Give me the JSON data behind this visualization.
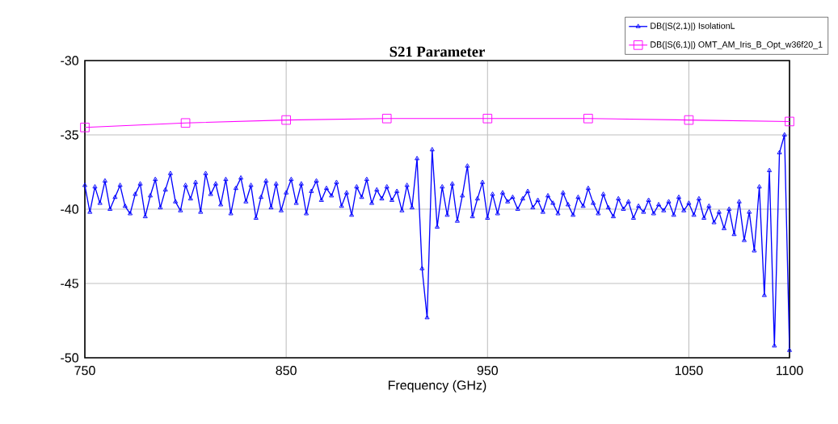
{
  "chart_data": {
    "type": "line",
    "title": "S21 Parameter",
    "xlabel": "Frequency (GHz)",
    "xlim": [
      750,
      1100
    ],
    "xticks": [
      750,
      850,
      950,
      1050,
      1100
    ],
    "ylim": [
      -50,
      -30
    ],
    "yticks": [
      -50,
      -45,
      -40,
      -35,
      -30
    ],
    "grid": true,
    "legend": "top right",
    "line_style": "solid",
    "series": [
      {
        "name": "DB(|S(2,1)|) IsolationL",
        "color": "#0000ff",
        "marker": "triangle",
        "x": [
          750,
          752.5,
          755,
          757.5,
          760,
          762.5,
          765,
          767.5,
          770,
          772.5,
          775,
          777.5,
          780,
          782.5,
          785,
          787.5,
          790,
          792.5,
          795,
          797.5,
          800,
          802.5,
          805,
          807.5,
          810,
          812.5,
          815,
          817.5,
          820,
          822.5,
          825,
          827.5,
          830,
          832.5,
          835,
          837.5,
          840,
          842.5,
          845,
          847.5,
          850,
          852.5,
          855,
          857.5,
          860,
          862.5,
          865,
          867.5,
          870,
          872.5,
          875,
          877.5,
          880,
          882.5,
          885,
          887.5,
          890,
          892.5,
          895,
          897.5,
          900,
          902.5,
          905,
          907.5,
          910,
          912.5,
          915,
          917.5,
          920,
          922.5,
          925,
          927.5,
          930,
          932.5,
          935,
          937.5,
          940,
          942.5,
          945,
          947.5,
          950,
          952.5,
          955,
          957.5,
          960,
          962.5,
          965,
          967.5,
          970,
          972.5,
          975,
          977.5,
          980,
          982.5,
          985,
          987.5,
          990,
          992.5,
          995,
          997.5,
          1000,
          1002.5,
          1005,
          1007.5,
          1010,
          1012.5,
          1015,
          1017.5,
          1020,
          1022.5,
          1025,
          1027.5,
          1030,
          1032.5,
          1035,
          1037.5,
          1040,
          1042.5,
          1045,
          1047.5,
          1050,
          1052.5,
          1055,
          1057.5,
          1060,
          1062.5,
          1065,
          1067.5,
          1070,
          1072.5,
          1075,
          1077.5,
          1080,
          1082.5,
          1085,
          1087.5,
          1090,
          1092.5,
          1095,
          1097.5,
          1100
        ],
        "values": [
          -38.4,
          -40.2,
          -38.5,
          -39.6,
          -38.1,
          -40.0,
          -39.2,
          -38.4,
          -39.8,
          -40.3,
          -39.0,
          -38.3,
          -40.5,
          -39.1,
          -38.0,
          -39.9,
          -38.7,
          -37.6,
          -39.5,
          -40.1,
          -38.4,
          -39.3,
          -38.2,
          -40.2,
          -37.6,
          -39.0,
          -38.3,
          -39.7,
          -38.0,
          -40.3,
          -38.6,
          -37.9,
          -39.5,
          -38.4,
          -40.6,
          -39.2,
          -38.1,
          -39.9,
          -38.3,
          -40.1,
          -38.9,
          -38.0,
          -39.6,
          -38.3,
          -40.3,
          -38.8,
          -38.1,
          -39.4,
          -38.6,
          -39.1,
          -38.2,
          -39.8,
          -38.9,
          -40.4,
          -38.5,
          -39.2,
          -38.0,
          -39.6,
          -38.7,
          -39.3,
          -38.5,
          -39.4,
          -38.8,
          -40.1,
          -38.4,
          -39.9,
          -36.6,
          -44.0,
          -47.3,
          -36.0,
          -41.2,
          -38.5,
          -40.4,
          -38.3,
          -40.8,
          -39.1,
          -37.1,
          -40.5,
          -39.3,
          -38.2,
          -40.6,
          -39.0,
          -40.3,
          -38.9,
          -39.5,
          -39.2,
          -40.0,
          -39.3,
          -38.8,
          -39.9,
          -39.4,
          -40.2,
          -39.1,
          -39.6,
          -40.3,
          -38.9,
          -39.7,
          -40.4,
          -39.2,
          -39.8,
          -38.6,
          -39.6,
          -40.3,
          -39.0,
          -39.9,
          -40.5,
          -39.3,
          -40.0,
          -39.5,
          -40.6,
          -39.8,
          -40.2,
          -39.4,
          -40.3,
          -39.7,
          -40.1,
          -39.5,
          -40.4,
          -39.2,
          -40.1,
          -39.6,
          -40.4,
          -39.3,
          -40.6,
          -39.8,
          -40.9,
          -40.2,
          -41.3,
          -40.0,
          -41.7,
          -39.5,
          -42.1,
          -40.2,
          -42.8,
          -38.5,
          -45.8,
          -37.4,
          -49.2,
          -36.2,
          -35.0,
          -49.5
        ]
      },
      {
        "name": "DB(|S(6,1)|) OMT_AM_Iris_B_Opt_w36f20_1",
        "color": "#ff00ff",
        "marker": "square",
        "x": [
          750,
          800,
          850,
          900,
          950,
          1000,
          1050,
          1100
        ],
        "values": [
          -34.5,
          -34.2,
          -34.0,
          -33.9,
          -33.9,
          -33.9,
          -34.0,
          -34.1
        ]
      }
    ]
  }
}
